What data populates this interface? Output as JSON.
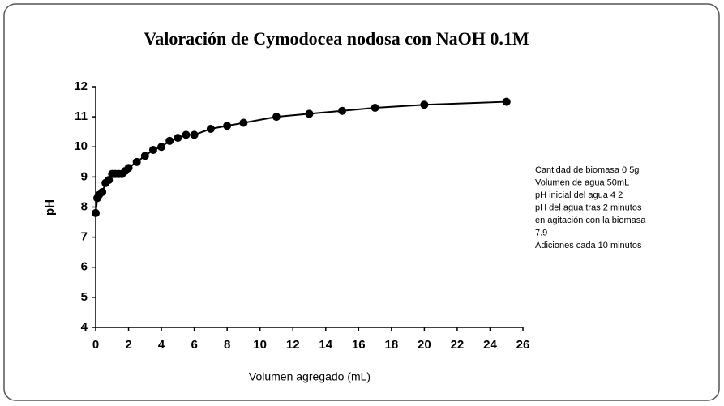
{
  "chart_data": {
    "type": "line",
    "title": "Valoración de Cymodocea nodosa con NaOH 0.1M",
    "xlabel": "Volumen agregado (mL)",
    "ylabel": "pH",
    "x": [
      0,
      0.1,
      0.2,
      0.4,
      0.6,
      0.8,
      1,
      1.2,
      1.4,
      1.6,
      1.8,
      2,
      2.5,
      3,
      3.5,
      4,
      4.5,
      5,
      5.5,
      6,
      7,
      8,
      9,
      11,
      13,
      15,
      17,
      20,
      25
    ],
    "series": [
      {
        "name": "pH",
        "color": "#000000",
        "values": [
          7.8,
          8.3,
          8.4,
          8.5,
          8.8,
          8.9,
          9.1,
          9.1,
          9.1,
          9.1,
          9.2,
          9.3,
          9.5,
          9.7,
          9.9,
          10,
          10.2,
          10.3,
          10.4,
          10.4,
          10.6,
          10.7,
          10.8,
          11,
          11.1,
          11.2,
          11.3,
          11.4,
          11.5
        ]
      }
    ],
    "xlim": [
      0,
      26
    ],
    "xticks": [
      0,
      2,
      4,
      6,
      8,
      10,
      12,
      14,
      16,
      18,
      20,
      22,
      24,
      26
    ],
    "ylim": [
      4,
      12
    ],
    "yticks": [
      4,
      5,
      6,
      7,
      8,
      9,
      10,
      11,
      12
    ],
    "grid": false,
    "annotation": [
      "Cantidad de biomasa  0 5g",
      "Volumen de agua  50mL",
      "pH inicial del agua  4 2",
      "pH del agua tras 2 minutos",
      "en agitación con la biomasa",
      "7.9",
      "Adiciones  cada 10 minutos"
    ]
  }
}
